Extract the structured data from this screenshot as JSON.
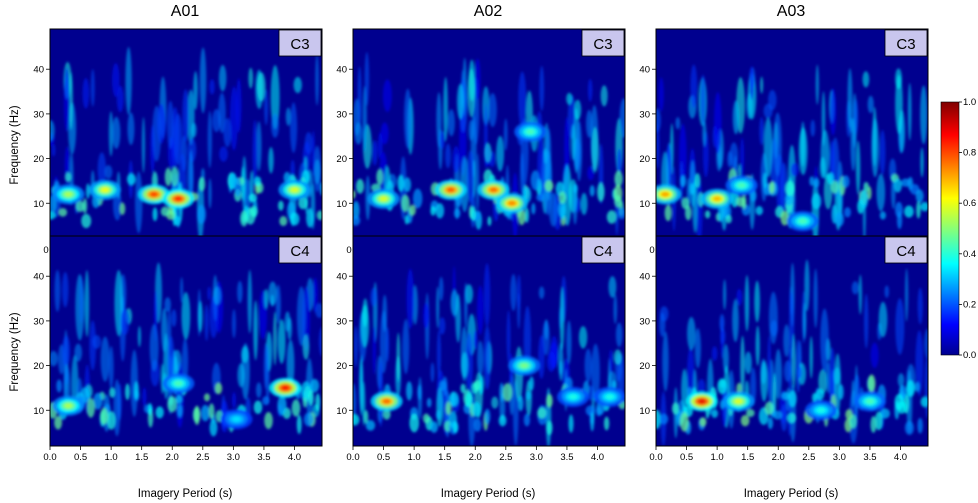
{
  "chart_data": {
    "type": "heatmap",
    "column_titles": [
      "A01",
      "A02",
      "A03"
    ],
    "row_labels": [
      "C3",
      "C4"
    ],
    "xlabel": "Imagery Period (s)",
    "ylabel": "Frequency (Hz)",
    "xlim": [
      0,
      4.45
    ],
    "ylim": [
      2,
      49
    ],
    "x_ticks": [
      "0.0",
      "0.5",
      "1.0",
      "1.5",
      "2.0",
      "2.5",
      "3.0",
      "3.5",
      "4.0"
    ],
    "y_ticks": [
      "10",
      "20",
      "30",
      "40"
    ],
    "colorbar": {
      "min": 0,
      "max": 1,
      "ticks": [
        "0.0",
        "0.2",
        "0.4",
        "0.6",
        "0.8",
        "1.0"
      ],
      "colormap": "jet"
    },
    "panels": [
      {
        "subject": "A01",
        "channel": "C3",
        "hotspots": [
          {
            "t": 0.9,
            "f": 13,
            "v": 0.62
          },
          {
            "t": 1.7,
            "f": 12,
            "v": 0.82
          },
          {
            "t": 2.1,
            "f": 11,
            "v": 0.85
          },
          {
            "t": 4.0,
            "f": 13,
            "v": 0.6
          },
          {
            "t": 0.3,
            "f": 12,
            "v": 0.55
          }
        ]
      },
      {
        "subject": "A02",
        "channel": "C3",
        "hotspots": [
          {
            "t": 1.6,
            "f": 13,
            "v": 0.8
          },
          {
            "t": 2.3,
            "f": 13,
            "v": 0.78
          },
          {
            "t": 2.6,
            "f": 10,
            "v": 0.75
          },
          {
            "t": 0.5,
            "f": 11,
            "v": 0.6
          },
          {
            "t": 2.9,
            "f": 26,
            "v": 0.45
          }
        ]
      },
      {
        "subject": "A03",
        "channel": "C3",
        "hotspots": [
          {
            "t": 0.15,
            "f": 12,
            "v": 0.72
          },
          {
            "t": 1.0,
            "f": 11,
            "v": 0.7
          },
          {
            "t": 1.4,
            "f": 14,
            "v": 0.45
          },
          {
            "t": 2.4,
            "f": 6,
            "v": 0.45
          }
        ]
      },
      {
        "subject": "A01",
        "channel": "C4",
        "hotspots": [
          {
            "t": 3.85,
            "f": 15,
            "v": 0.88
          },
          {
            "t": 0.3,
            "f": 11,
            "v": 0.55
          },
          {
            "t": 2.1,
            "f": 16,
            "v": 0.45
          },
          {
            "t": 3.05,
            "f": 8,
            "v": 0.35
          }
        ]
      },
      {
        "subject": "A02",
        "channel": "C4",
        "hotspots": [
          {
            "t": 0.55,
            "f": 12,
            "v": 0.78
          },
          {
            "t": 2.8,
            "f": 20,
            "v": 0.5
          },
          {
            "t": 3.6,
            "f": 13,
            "v": 0.4
          },
          {
            "t": 4.2,
            "f": 13,
            "v": 0.4
          }
        ]
      },
      {
        "subject": "A03",
        "channel": "C4",
        "hotspots": [
          {
            "t": 0.75,
            "f": 12,
            "v": 0.9
          },
          {
            "t": 1.35,
            "f": 12,
            "v": 0.6
          },
          {
            "t": 2.7,
            "f": 10,
            "v": 0.4
          },
          {
            "t": 3.5,
            "f": 12,
            "v": 0.45
          }
        ]
      }
    ]
  }
}
